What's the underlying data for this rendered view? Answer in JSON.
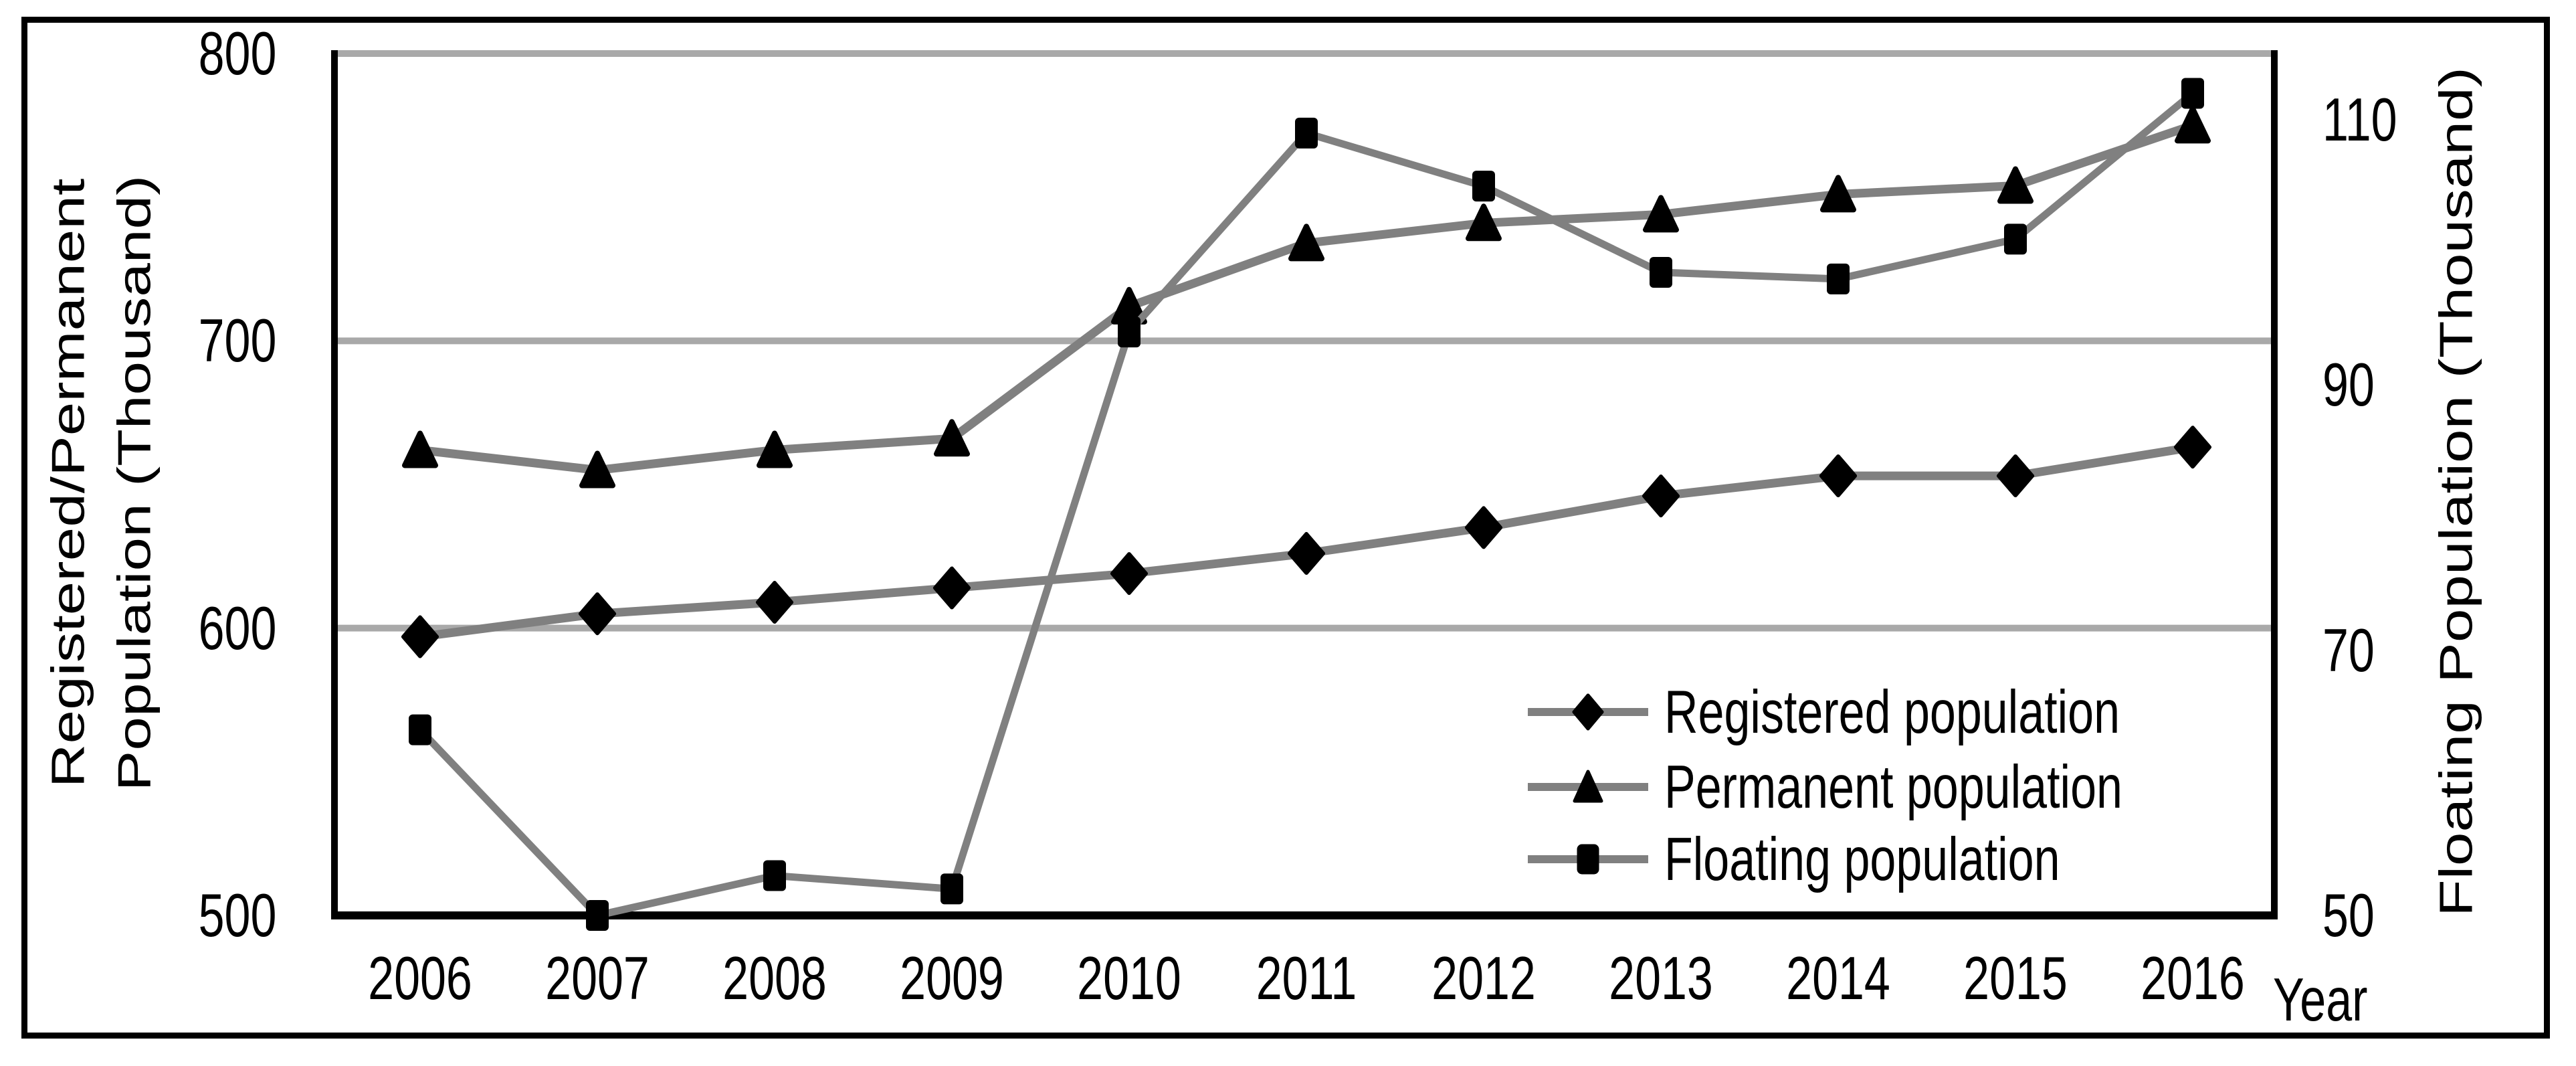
{
  "figure": {
    "background": "#ffffff",
    "border_color": "#000000"
  },
  "colors": {
    "series_line": "#808080",
    "gridline": "#A9A9A9",
    "marker_fill": "#000000",
    "axis_line": "#000000",
    "text": "#000000"
  },
  "axes": {
    "x": {
      "title": "Year",
      "ticks": [
        "2006",
        "2007",
        "2008",
        "2009",
        "2010",
        "2011",
        "2012",
        "2013",
        "2014",
        "2015",
        "2016"
      ]
    },
    "y_left": {
      "title_line1": "Registered/Permanent",
      "title_line2": "Population (Thousand)",
      "ticks": [
        800,
        700,
        600,
        500
      ],
      "min": 500,
      "max": 800
    },
    "y_right": {
      "title": "Floating Population (Thousand)",
      "ticks": [
        110,
        90,
        70,
        50
      ],
      "min": 50,
      "max": 115
    }
  },
  "legend": {
    "items": [
      {
        "label": "Registered population",
        "marker": "diamond"
      },
      {
        "label": "Permanent population",
        "marker": "triangle"
      },
      {
        "label": "Floating population",
        "marker": "square"
      }
    ]
  },
  "chart_data": {
    "type": "line",
    "x": [
      2006,
      2007,
      2008,
      2009,
      2010,
      2011,
      2012,
      2013,
      2014,
      2015,
      2016
    ],
    "series": [
      {
        "name": "Registered population",
        "axis": "left",
        "marker": "diamond",
        "values": [
          597,
          605,
          609,
          614,
          619,
          626,
          635,
          646,
          653,
          653,
          663
        ]
      },
      {
        "name": "Permanent population",
        "axis": "left",
        "marker": "triangle",
        "values": [
          662,
          655,
          662,
          666,
          712,
          734,
          741,
          744,
          751,
          754,
          775
        ]
      },
      {
        "name": "Floating population",
        "axis": "right",
        "marker": "square",
        "values": [
          64,
          50,
          53,
          52,
          94,
          109,
          105,
          98.5,
          98,
          101,
          112
        ]
      }
    ],
    "title": "",
    "xlabel": "Year",
    "ylabel_left": "Registered/Permanent Population (Thousand)",
    "ylabel_right": "Floating Population (Thousand)",
    "ylim_left": [
      500,
      800
    ],
    "ylim_right": [
      50,
      115
    ],
    "grid": "horizontal",
    "legend_position": "inside-lower-right"
  }
}
